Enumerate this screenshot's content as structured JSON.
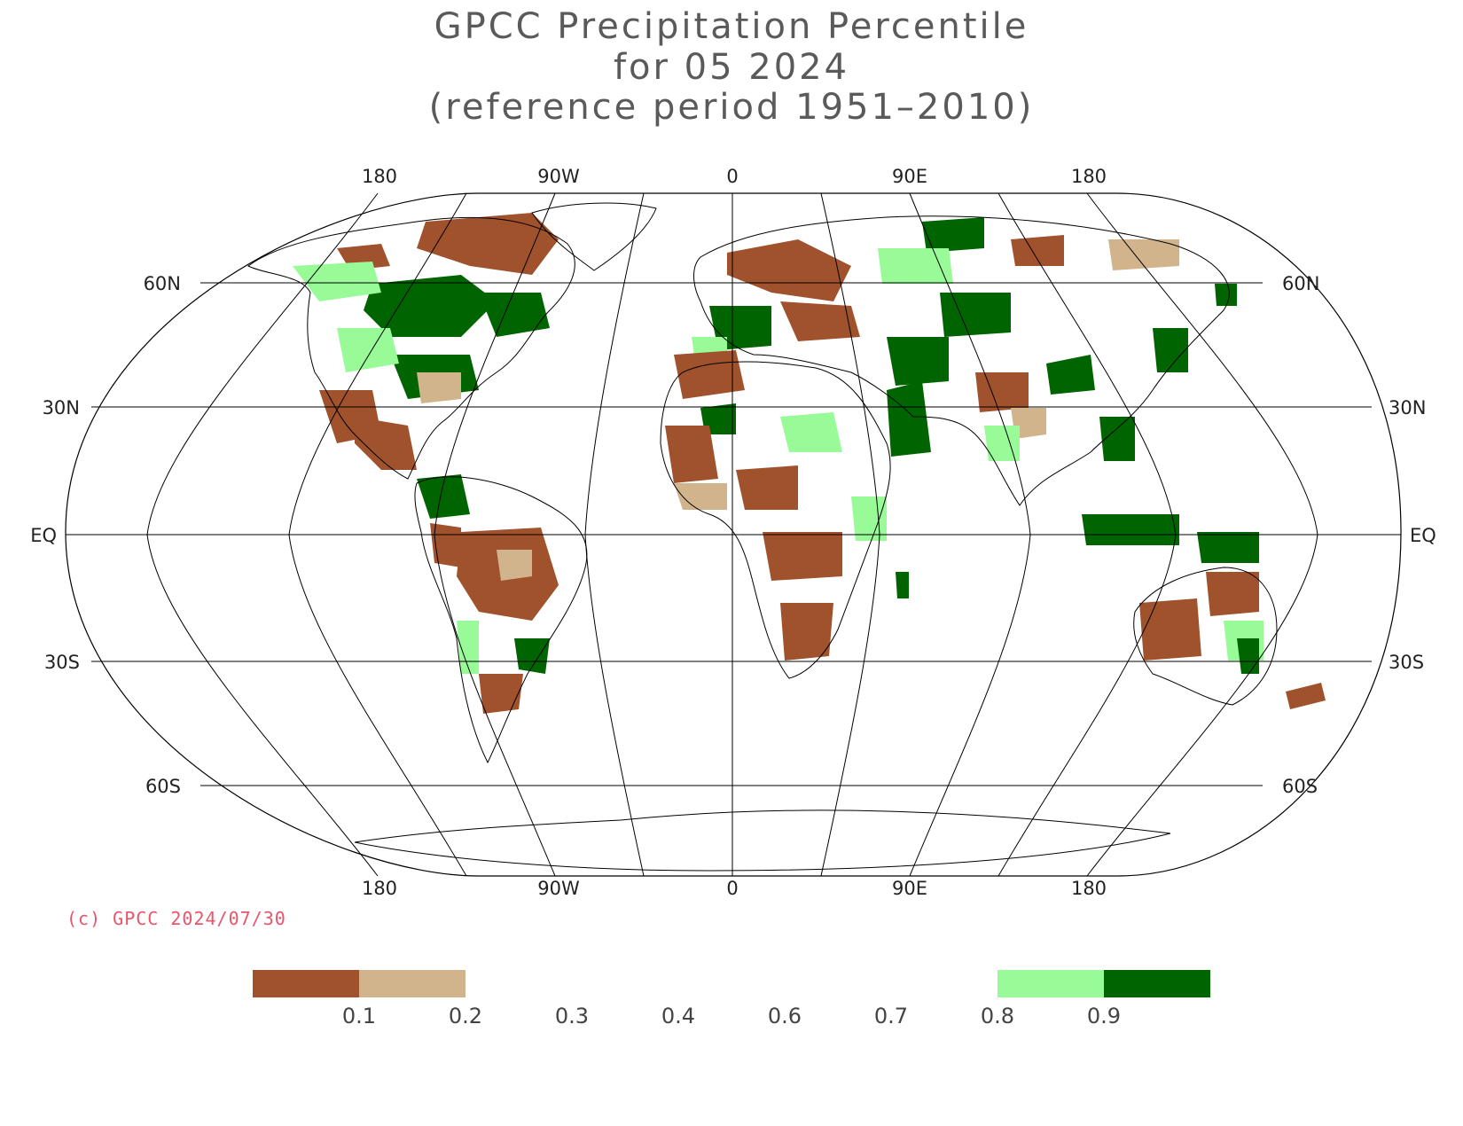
{
  "title": {
    "line1": "GPCC Precipitation Percentile",
    "line2": "for 05 2024",
    "line3": "(reference period 1951–2010)"
  },
  "copyright": "(c) GPCC 2024/07/30",
  "map": {
    "projection": "robinson",
    "lon_labels_top": [
      "180",
      "90W",
      "0",
      "90E",
      "180"
    ],
    "lon_labels_bottom": [
      "180",
      "90W",
      "0",
      "90E",
      "180"
    ],
    "lat_labels_left": [
      "60N",
      "30N",
      "EQ",
      "30S",
      "60S"
    ],
    "lat_labels_right": [
      "60N",
      "30N",
      "EQ",
      "30S",
      "60S"
    ],
    "colors": {
      "p_below_0_1": "#a0522d",
      "p_0_1_to_0_2": "#d2b48c",
      "p_0_8_to_0_9": "#98fb98",
      "p_above_0_9": "#006400"
    }
  },
  "legend": {
    "labels": [
      "0.1",
      "0.2",
      "0.3",
      "0.4",
      "0.6",
      "0.7",
      "0.8",
      "0.9"
    ],
    "colors": [
      "#a0522d",
      "#d2b48c",
      "",
      "",
      "",
      "",
      "#98fb98",
      "#006400"
    ]
  }
}
